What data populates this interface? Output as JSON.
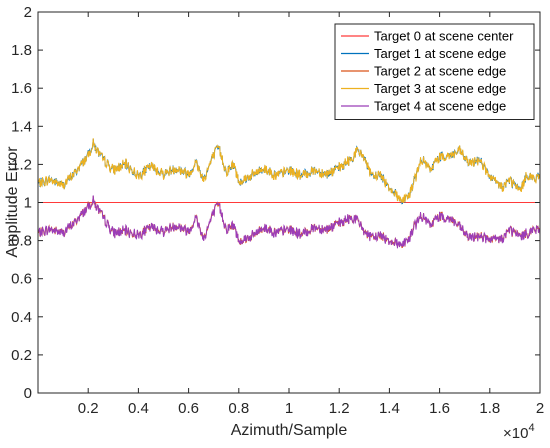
{
  "chart_data": {
    "type": "line",
    "title": "",
    "xlabel": "Azimuth/Sample",
    "ylabel": "Amplitude Error",
    "x_exponent_label": "×10",
    "x_exponent_power": "4",
    "xlim": [
      0,
      2
    ],
    "ylim": [
      0,
      2
    ],
    "xticks": [
      0.2,
      0.4,
      0.6,
      0.8,
      1,
      1.2,
      1.4,
      1.6,
      1.8,
      2
    ],
    "xtick_labels": [
      "0.2",
      "0.4",
      "0.6",
      "0.8",
      "1",
      "1.2",
      "1.4",
      "1.6",
      "1.8",
      "2"
    ],
    "yticks": [
      0,
      0.2,
      0.4,
      0.6,
      0.8,
      1,
      1.2,
      1.4,
      1.6,
      1.8,
      2
    ],
    "ytick_labels": [
      "0",
      "0.2",
      "0.4",
      "0.6",
      "0.8",
      "1",
      "1.2",
      "1.4",
      "1.6",
      "1.8",
      "2"
    ],
    "grid": false,
    "legend_position": "top-right",
    "noise_amplitude": 0.025,
    "envelope_x": [
      0,
      0.05,
      0.1,
      0.15,
      0.2,
      0.22,
      0.25,
      0.3,
      0.35,
      0.4,
      0.45,
      0.5,
      0.55,
      0.6,
      0.63,
      0.66,
      0.7,
      0.72,
      0.75,
      0.78,
      0.8,
      0.85,
      0.9,
      0.95,
      1.0,
      1.05,
      1.1,
      1.15,
      1.2,
      1.25,
      1.27,
      1.3,
      1.33,
      1.36,
      1.4,
      1.45,
      1.48,
      1.5,
      1.53,
      1.56,
      1.6,
      1.65,
      1.68,
      1.72,
      1.76,
      1.8,
      1.85,
      1.88,
      1.92,
      1.95,
      1.98,
      2.0
    ],
    "series": [
      {
        "name": "Target 0 at scene center",
        "color": "#ff3a3a",
        "style": "flat",
        "y": [
          1,
          1
        ]
      },
      {
        "name": "Target 1 at scene edge",
        "color": "#0072bd",
        "style": "upper",
        "y": [
          1.1,
          1.12,
          1.09,
          1.16,
          1.25,
          1.31,
          1.24,
          1.17,
          1.2,
          1.14,
          1.19,
          1.15,
          1.18,
          1.15,
          1.21,
          1.12,
          1.25,
          1.29,
          1.16,
          1.2,
          1.11,
          1.14,
          1.18,
          1.14,
          1.17,
          1.14,
          1.17,
          1.15,
          1.18,
          1.23,
          1.27,
          1.24,
          1.13,
          1.15,
          1.08,
          1.01,
          1.04,
          1.12,
          1.23,
          1.17,
          1.24,
          1.25,
          1.27,
          1.2,
          1.23,
          1.13,
          1.08,
          1.12,
          1.06,
          1.15,
          1.12,
          1.14
        ]
      },
      {
        "name": "Target 2 at scene edge",
        "color": "#d95319",
        "style": "lower",
        "y": [
          0.84,
          0.86,
          0.84,
          0.9,
          0.98,
          1.01,
          0.94,
          0.84,
          0.85,
          0.83,
          0.87,
          0.85,
          0.88,
          0.85,
          0.92,
          0.81,
          0.95,
          0.99,
          0.86,
          0.88,
          0.8,
          0.82,
          0.87,
          0.84,
          0.86,
          0.83,
          0.87,
          0.86,
          0.89,
          0.92,
          0.91,
          0.85,
          0.81,
          0.83,
          0.8,
          0.78,
          0.81,
          0.88,
          0.93,
          0.88,
          0.93,
          0.91,
          0.87,
          0.81,
          0.83,
          0.8,
          0.81,
          0.86,
          0.82,
          0.84,
          0.86,
          0.85
        ]
      },
      {
        "name": "Target 3 at scene edge",
        "color": "#edb120",
        "style": "upper",
        "y": [
          1.1,
          1.12,
          1.09,
          1.16,
          1.25,
          1.31,
          1.24,
          1.17,
          1.2,
          1.14,
          1.19,
          1.15,
          1.18,
          1.15,
          1.21,
          1.12,
          1.25,
          1.29,
          1.16,
          1.2,
          1.11,
          1.14,
          1.18,
          1.14,
          1.17,
          1.14,
          1.17,
          1.15,
          1.18,
          1.23,
          1.27,
          1.24,
          1.13,
          1.15,
          1.08,
          1.01,
          1.04,
          1.12,
          1.23,
          1.17,
          1.24,
          1.25,
          1.27,
          1.2,
          1.23,
          1.13,
          1.08,
          1.12,
          1.06,
          1.15,
          1.12,
          1.14
        ]
      },
      {
        "name": "Target 4 at scene edge",
        "color": "#9b3db8",
        "style": "lower",
        "y": [
          0.84,
          0.86,
          0.84,
          0.9,
          0.98,
          1.01,
          0.94,
          0.84,
          0.85,
          0.83,
          0.87,
          0.85,
          0.88,
          0.85,
          0.92,
          0.81,
          0.95,
          0.99,
          0.86,
          0.88,
          0.8,
          0.82,
          0.87,
          0.84,
          0.86,
          0.83,
          0.87,
          0.86,
          0.89,
          0.92,
          0.91,
          0.85,
          0.81,
          0.83,
          0.8,
          0.78,
          0.81,
          0.88,
          0.93,
          0.88,
          0.93,
          0.91,
          0.87,
          0.81,
          0.83,
          0.8,
          0.81,
          0.86,
          0.82,
          0.84,
          0.86,
          0.85
        ]
      }
    ]
  }
}
